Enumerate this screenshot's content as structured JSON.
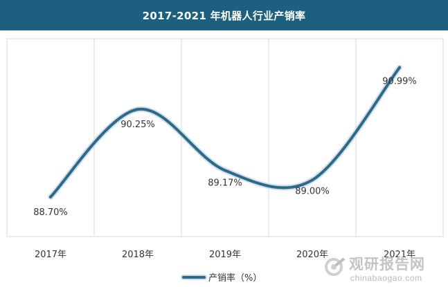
{
  "chart_data": {
    "type": "line",
    "title": "2017-2021 年机器人行业产销率",
    "categories": [
      "2017年",
      "2018年",
      "2019年",
      "2020年",
      "2021年"
    ],
    "series": [
      {
        "name": "产销率（%）",
        "values": [
          88.7,
          90.25,
          89.17,
          89.0,
          90.99
        ],
        "labels": [
          "88.70%",
          "90.25%",
          "89.17%",
          "89.00%",
          "90.99%"
        ]
      }
    ],
    "ylim": [
      88.0,
      91.5
    ],
    "grid": "vertical",
    "legend": "bottom-center",
    "colors": {
      "title_bg": "#1c5f7e",
      "line": "#2b6a8a",
      "grid": "#d9d9d9"
    }
  },
  "watermark": {
    "cn": "观研报告网",
    "en": "chinabaogao.com"
  }
}
